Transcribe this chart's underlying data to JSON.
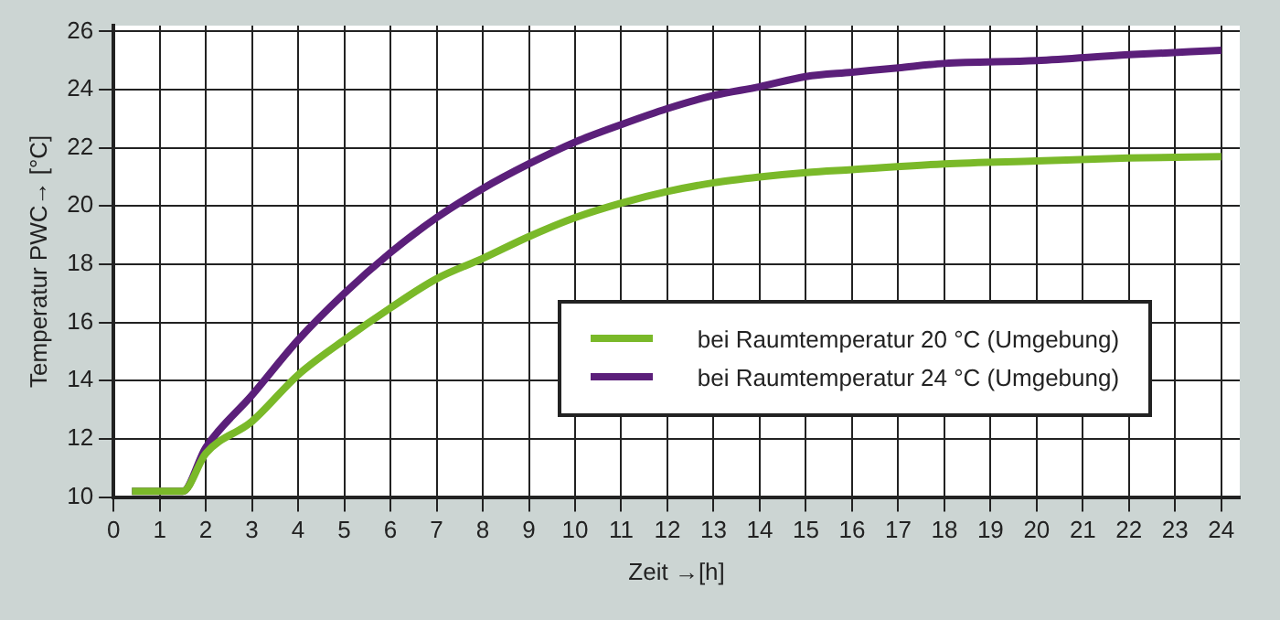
{
  "chart_data": {
    "type": "line",
    "xlabel": "Zeit →[h]",
    "ylabel": "Temperatur PWC→ [°C]",
    "xlim": [
      0,
      24.4
    ],
    "xticks": [
      0,
      1,
      2,
      3,
      4,
      5,
      6,
      7,
      8,
      9,
      10,
      11,
      12,
      13,
      14,
      15,
      16,
      17,
      18,
      19,
      20,
      21,
      22,
      23,
      24
    ],
    "ylim": [
      10,
      26.2
    ],
    "yticks": [
      10,
      12,
      14,
      16,
      18,
      20,
      22,
      24,
      26
    ],
    "grid": true,
    "legend": "bottom right",
    "marker": "none",
    "line_style": "solid",
    "series": [
      {
        "name": "bei Raumtemperatur 20 °C (Umgebung)",
        "color": "#7ab929",
        "x": [
          0.4,
          1.5,
          2,
          3,
          4,
          5,
          6,
          7,
          8,
          9,
          10,
          11,
          12,
          13,
          14,
          15,
          16,
          18,
          20,
          22,
          24
        ],
        "values": [
          10.2,
          10.2,
          11.5,
          12.6,
          14.2,
          15.4,
          16.5,
          17.5,
          18.2,
          18.95,
          19.6,
          20.1,
          20.5,
          20.8,
          21.0,
          21.15,
          21.25,
          21.45,
          21.55,
          21.65,
          21.7
        ]
      },
      {
        "name": "bei Raumtemperatur 24 °C (Umgebung)",
        "color": "#5b1f7a",
        "x": [
          0.4,
          1.5,
          2,
          3,
          4,
          5,
          6,
          7,
          8,
          9,
          10,
          11,
          12,
          13,
          14,
          15,
          16,
          17,
          18,
          20,
          22,
          24
        ],
        "values": [
          10.2,
          10.2,
          11.7,
          13.5,
          15.4,
          17.0,
          18.4,
          19.6,
          20.6,
          21.45,
          22.2,
          22.8,
          23.35,
          23.8,
          24.1,
          24.45,
          24.6,
          24.75,
          24.9,
          25.0,
          25.2,
          25.35
        ]
      }
    ]
  }
}
